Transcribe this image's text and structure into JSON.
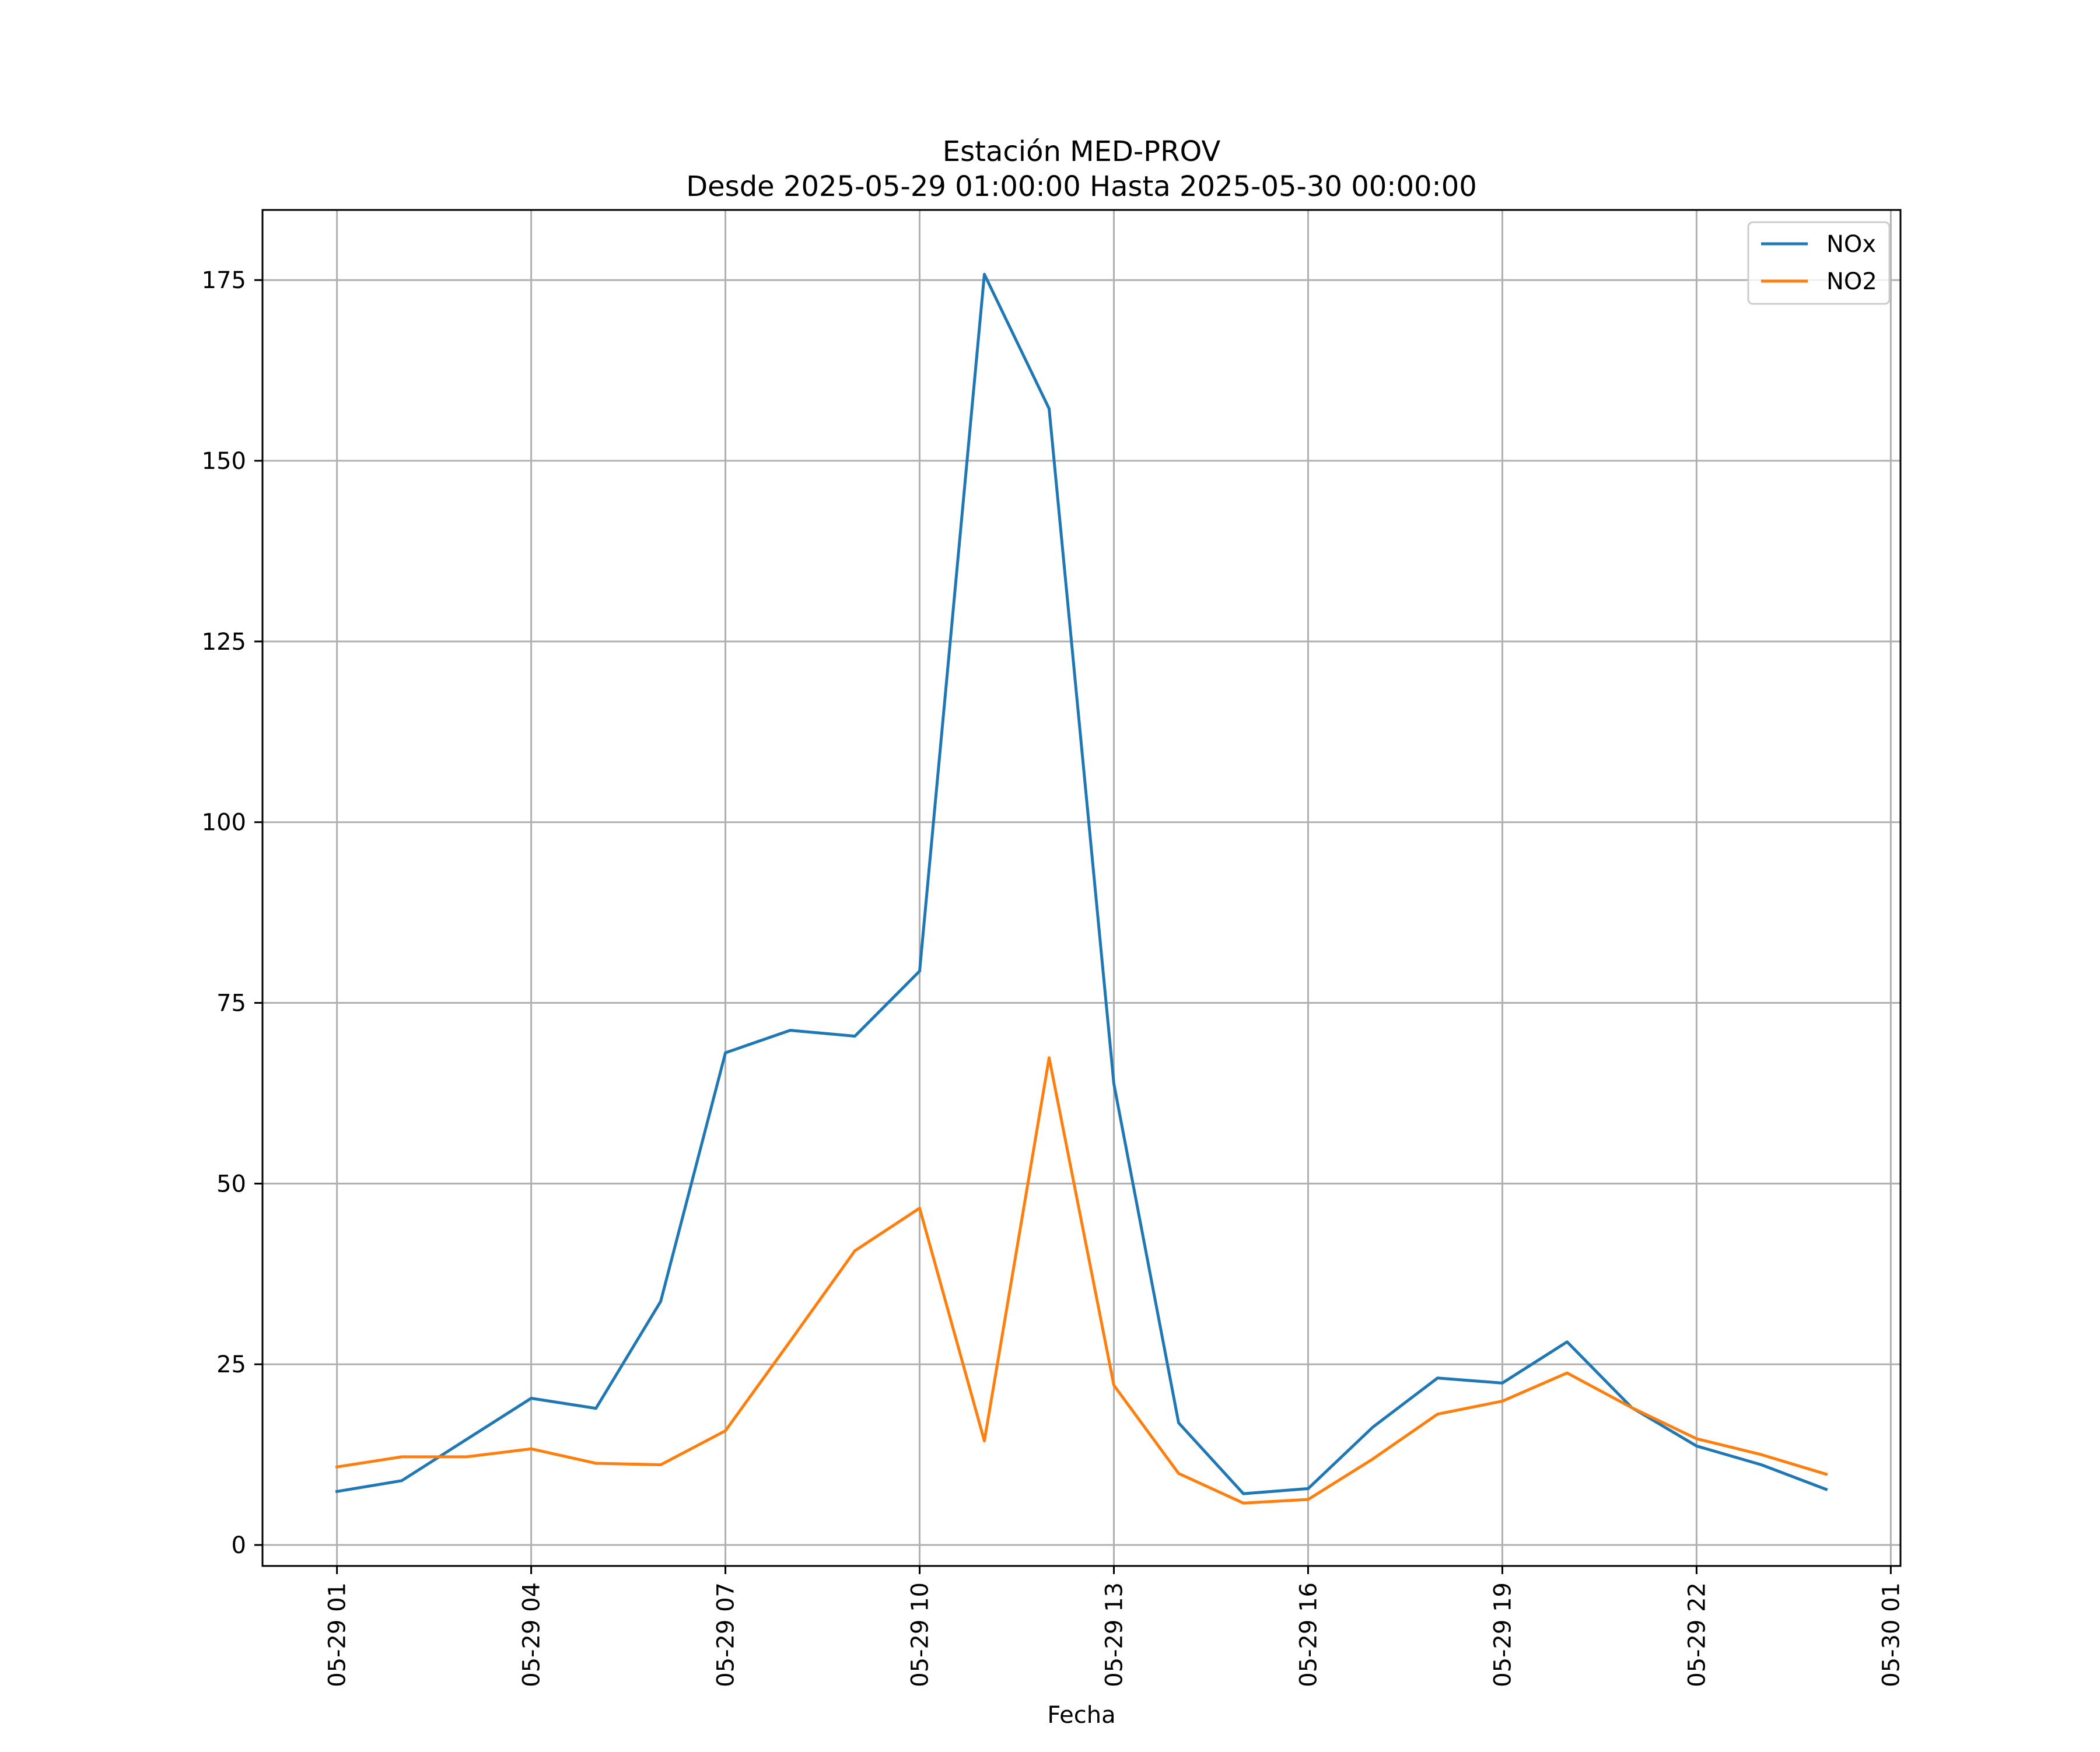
{
  "chart_data": {
    "type": "line",
    "title": "Estación MED-PROV",
    "subtitle": "Desde 2025-05-29 01:00:00 Hasta 2025-05-30 00:00:00",
    "xlabel": "Fecha",
    "ylabel": "",
    "x": [
      "2025-05-29 01:00",
      "2025-05-29 02:00",
      "2025-05-29 03:00",
      "2025-05-29 04:00",
      "2025-05-29 05:00",
      "2025-05-29 06:00",
      "2025-05-29 07:00",
      "2025-05-29 08:00",
      "2025-05-29 09:00",
      "2025-05-29 10:00",
      "2025-05-29 11:00",
      "2025-05-29 12:00",
      "2025-05-29 13:00",
      "2025-05-29 14:00",
      "2025-05-29 15:00",
      "2025-05-29 16:00",
      "2025-05-29 17:00",
      "2025-05-29 18:00",
      "2025-05-29 19:00",
      "2025-05-29 20:00",
      "2025-05-29 21:00",
      "2025-05-29 22:00",
      "2025-05-29 23:00",
      "2025-05-30 00:00"
    ],
    "series": [
      {
        "name": "NOx",
        "color": "#1f77b4",
        "values": [
          7.4,
          8.9,
          14.6,
          20.3,
          18.9,
          33.7,
          68.1,
          71.2,
          70.4,
          79.4,
          175.8,
          157.2,
          63.8,
          16.9,
          7.1,
          7.8,
          16.3,
          23.1,
          22.4,
          28.1,
          19.0,
          13.7,
          11.1,
          7.7
        ]
      },
      {
        "name": "NO2",
        "color": "#ff7f0e",
        "values": [
          10.8,
          12.2,
          12.2,
          13.3,
          11.3,
          11.1,
          15.8,
          28.2,
          40.7,
          46.6,
          14.4,
          67.4,
          22.1,
          9.9,
          5.8,
          6.3,
          11.9,
          18.1,
          19.9,
          23.8,
          19.0,
          14.7,
          12.5,
          9.8
        ]
      }
    ],
    "xticks": [
      {
        "value": "2025-05-29 01:00",
        "label": "05-29 01"
      },
      {
        "value": "2025-05-29 04:00",
        "label": "05-29 04"
      },
      {
        "value": "2025-05-29 07:00",
        "label": "05-29 07"
      },
      {
        "value": "2025-05-29 10:00",
        "label": "05-29 10"
      },
      {
        "value": "2025-05-29 13:00",
        "label": "05-29 13"
      },
      {
        "value": "2025-05-29 16:00",
        "label": "05-29 16"
      },
      {
        "value": "2025-05-29 19:00",
        "label": "05-29 19"
      },
      {
        "value": "2025-05-29 22:00",
        "label": "05-29 22"
      },
      {
        "value": "2025-05-30 01:00",
        "label": "05-30 01"
      }
    ],
    "yticks": [
      0,
      25,
      50,
      75,
      100,
      125,
      150,
      175
    ],
    "xlim": [
      "2025-05-28 23:51",
      "2025-05-30 01:09"
    ],
    "ylim": [
      -2.9,
      184.7
    ],
    "grid": true,
    "legend_position": "top-right"
  }
}
